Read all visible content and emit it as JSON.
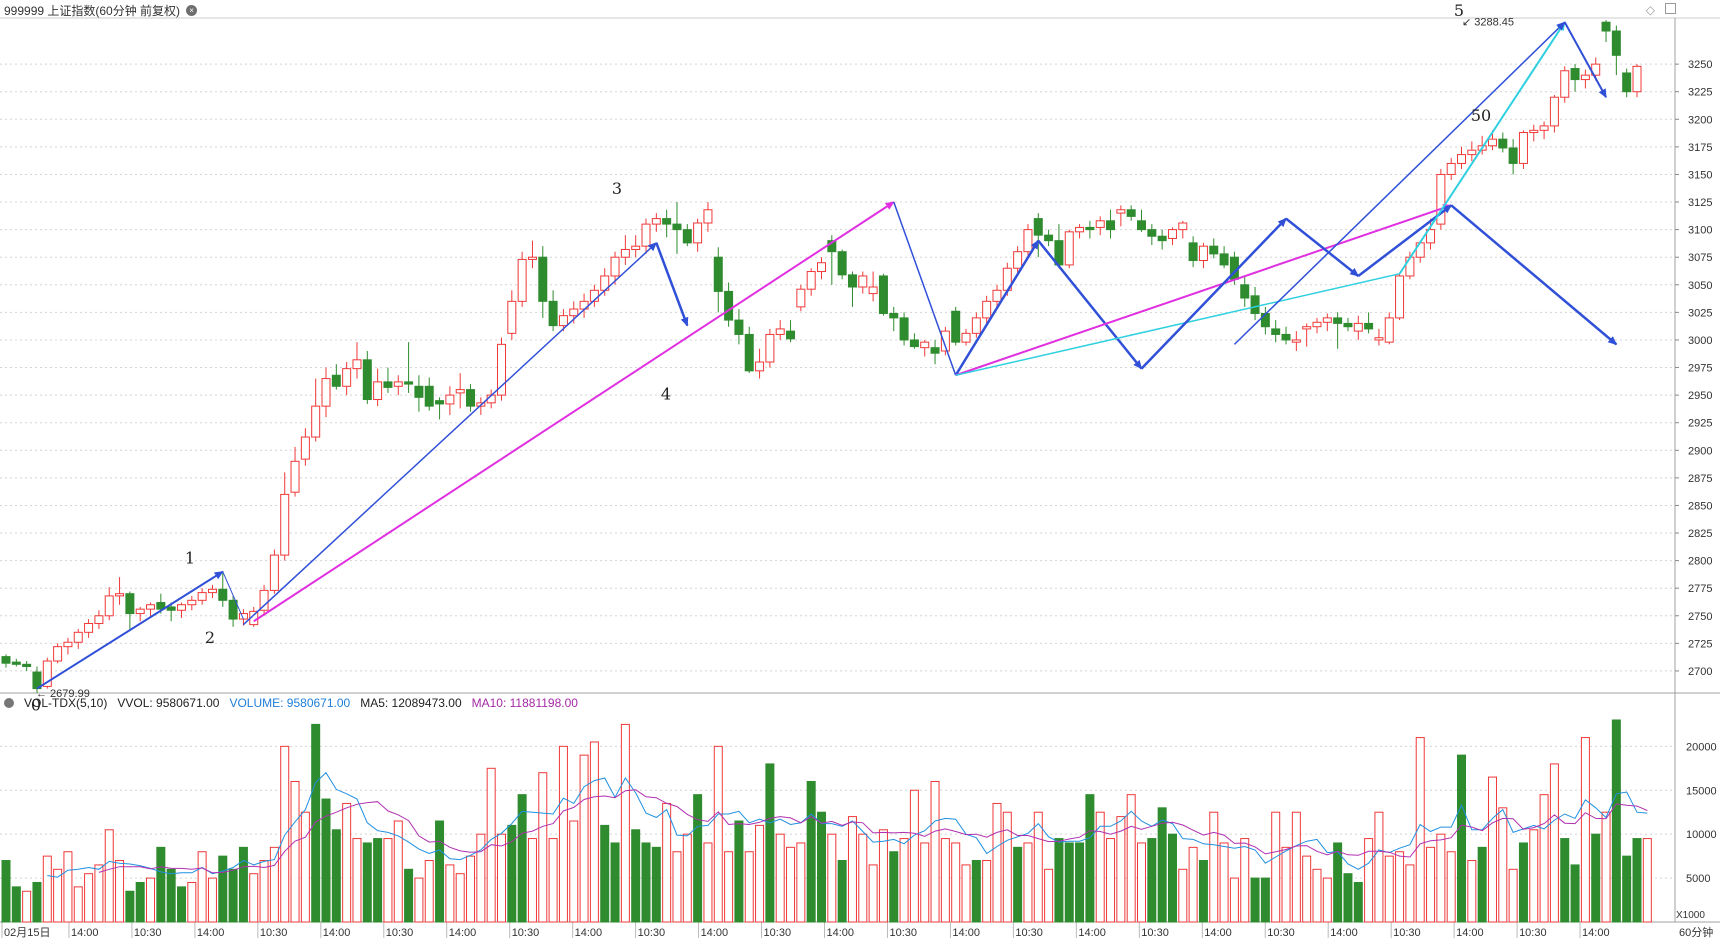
{
  "header": {
    "title": "999999 上证指数(60分钟 前复权)",
    "diamond_icon": "◇",
    "max_label": "3288.45",
    "min_label": "2679.99"
  },
  "volume_header": {
    "indicator": "VOL-TDX(5,10)",
    "vvol": "VVOL: 9580671.00",
    "volume": "VOLUME: 9580671.00",
    "ma5": "MA5: 12089473.00",
    "ma10": "MA10: 11881198.00",
    "unit": "X1000"
  },
  "period_label": "60分钟",
  "colors": {
    "up": "#f03838",
    "down": "#2e8b2e",
    "wave_blue": "#3050d8",
    "wave_magenta": "#e030e0",
    "wave_cyan": "#30d0e0",
    "ma5": "#2090e0",
    "ma10": "#b030b0",
    "grid": "#d4d4d4"
  },
  "chart_data": {
    "type": "candlestick",
    "price_axis": {
      "min": 2680,
      "max": 3290,
      "ticks": [
        2700,
        2725,
        2750,
        2775,
        2800,
        2825,
        2850,
        2875,
        2900,
        2925,
        2950,
        2975,
        3000,
        3025,
        3050,
        3075,
        3100,
        3125,
        3150,
        3175,
        3200,
        3225,
        3250
      ]
    },
    "volume_axis": {
      "min": 0,
      "max": 23000,
      "ticks": [
        5000,
        10000,
        15000,
        20000
      ],
      "unit": "X1000"
    },
    "x_labels": [
      "02月15日",
      "14:00",
      "10:30",
      "14:00",
      "10:30",
      "14:00",
      "10:30",
      "14:00",
      "10:30",
      "14:00",
      "10:30",
      "14:00",
      "10:30",
      "14:00",
      "10:30",
      "14:00",
      "10:30",
      "14:00",
      "10:30",
      "14:00",
      "10:30",
      "14:00",
      "10:30",
      "14:00",
      "10:30",
      "14:00"
    ],
    "candles": [
      [
        2713,
        2715,
        2703,
        2707
      ],
      [
        2708,
        2711,
        2704,
        2706
      ],
      [
        2706,
        2709,
        2700,
        2704
      ],
      [
        2699,
        2704,
        2680,
        2684
      ],
      [
        2686,
        2712,
        2684,
        2709
      ],
      [
        2709,
        2725,
        2707,
        2722
      ],
      [
        2722,
        2730,
        2715,
        2726
      ],
      [
        2726,
        2738,
        2720,
        2735
      ],
      [
        2735,
        2747,
        2730,
        2743
      ],
      [
        2743,
        2755,
        2738,
        2750
      ],
      [
        2750,
        2776,
        2746,
        2768
      ],
      [
        2768,
        2785,
        2760,
        2770
      ],
      [
        2770,
        2772,
        2738,
        2752
      ],
      [
        2752,
        2758,
        2745,
        2756
      ],
      [
        2756,
        2762,
        2748,
        2760
      ],
      [
        2762,
        2770,
        2752,
        2756
      ],
      [
        2758,
        2762,
        2745,
        2755
      ],
      [
        2755,
        2762,
        2748,
        2760
      ],
      [
        2760,
        2768,
        2755,
        2764
      ],
      [
        2764,
        2775,
        2760,
        2771
      ],
      [
        2771,
        2778,
        2766,
        2774
      ],
      [
        2774,
        2790,
        2758,
        2764
      ],
      [
        2764,
        2768,
        2740,
        2747
      ],
      [
        2747,
        2756,
        2741,
        2752
      ],
      [
        2742,
        2758,
        2740,
        2754
      ],
      [
        2755,
        2778,
        2750,
        2773
      ],
      [
        2773,
        2810,
        2770,
        2805
      ],
      [
        2805,
        2880,
        2800,
        2860
      ],
      [
        2862,
        2903,
        2858,
        2890
      ],
      [
        2892,
        2920,
        2886,
        2912
      ],
      [
        2912,
        2965,
        2908,
        2940
      ],
      [
        2940,
        2975,
        2930,
        2965
      ],
      [
        2968,
        2978,
        2955,
        2958
      ],
      [
        2958,
        2980,
        2950,
        2974
      ],
      [
        2974,
        2998,
        2965,
        2982
      ],
      [
        2982,
        2990,
        2942,
        2946
      ],
      [
        2946,
        2974,
        2940,
        2962
      ],
      [
        2962,
        2975,
        2952,
        2957
      ],
      [
        2958,
        2968,
        2950,
        2962
      ],
      [
        2962,
        2998,
        2952,
        2960
      ],
      [
        2958,
        2968,
        2935,
        2948
      ],
      [
        2958,
        2966,
        2936,
        2940
      ],
      [
        2945,
        2948,
        2928,
        2942
      ],
      [
        2942,
        2958,
        2932,
        2950
      ],
      [
        2952,
        2970,
        2938,
        2955
      ],
      [
        2955,
        2960,
        2935,
        2940
      ],
      [
        2940,
        2948,
        2932,
        2943
      ],
      [
        2943,
        2955,
        2938,
        2950
      ],
      [
        2950,
        3002,
        2945,
        2996
      ],
      [
        3006,
        3045,
        3000,
        3035
      ],
      [
        3035,
        3080,
        3030,
        3073
      ],
      [
        3073,
        3090,
        3065,
        3075
      ],
      [
        3075,
        3085,
        3020,
        3035
      ],
      [
        3035,
        3045,
        3008,
        3013
      ],
      [
        3013,
        3028,
        3008,
        3022
      ],
      [
        3022,
        3035,
        3015,
        3028
      ],
      [
        3028,
        3042,
        3020,
        3035
      ],
      [
        3035,
        3050,
        3030,
        3045
      ],
      [
        3045,
        3065,
        3040,
        3058
      ],
      [
        3058,
        3080,
        3050,
        3075
      ],
      [
        3075,
        3095,
        3068,
        3082
      ],
      [
        3082,
        3095,
        3075,
        3085
      ],
      [
        3085,
        3110,
        3078,
        3105
      ],
      [
        3105,
        3115,
        3098,
        3110
      ],
      [
        3110,
        3118,
        3093,
        3105
      ],
      [
        3105,
        3125,
        3078,
        3100
      ],
      [
        3100,
        3105,
        3085,
        3088
      ],
      [
        3088,
        3110,
        3080,
        3106
      ],
      [
        3106,
        3125,
        3098,
        3118
      ],
      [
        3075,
        3084,
        3025,
        3044
      ],
      [
        3044,
        3052,
        3012,
        3018
      ],
      [
        3018,
        3028,
        2996,
        3005
      ],
      [
        3005,
        3012,
        2970,
        2972
      ],
      [
        2972,
        2992,
        2965,
        2980
      ],
      [
        2980,
        3010,
        2975,
        3005
      ],
      [
        3005,
        3018,
        3000,
        3010
      ],
      [
        3008,
        3018,
        2998,
        3001
      ],
      [
        3030,
        3050,
        3026,
        3046
      ],
      [
        3046,
        3065,
        3040,
        3062
      ],
      [
        3062,
        3075,
        3055,
        3070
      ],
      [
        3090,
        3095,
        3050,
        3080
      ],
      [
        3080,
        3082,
        3055,
        3059
      ],
      [
        3059,
        3062,
        3030,
        3048
      ],
      [
        3048,
        3062,
        3042,
        3058
      ],
      [
        3042,
        3062,
        3035,
        3048
      ],
      [
        3058,
        3060,
        3022,
        3024
      ],
      [
        3024,
        3030,
        3008,
        3020
      ],
      [
        3020,
        3025,
        2995,
        3000
      ],
      [
        3000,
        3006,
        2992,
        2994
      ],
      [
        2993,
        3000,
        2985,
        2998
      ],
      [
        2993,
        3000,
        2978,
        2988
      ],
      [
        2990,
        3012,
        2986,
        3008
      ],
      [
        3026,
        3030,
        2995,
        2998
      ],
      [
        2998,
        3010,
        2995,
        3006
      ],
      [
        3006,
        3025,
        3002,
        3020
      ],
      [
        3020,
        3040,
        3015,
        3035
      ],
      [
        3035,
        3050,
        3030,
        3045
      ],
      [
        3045,
        3070,
        3040,
        3065
      ],
      [
        3065,
        3085,
        3060,
        3080
      ],
      [
        3080,
        3105,
        3075,
        3100
      ],
      [
        3110,
        3115,
        3075,
        3095
      ],
      [
        3095,
        3100,
        3085,
        3090
      ],
      [
        3090,
        3105,
        3065,
        3068
      ],
      [
        3068,
        3100,
        3065,
        3098
      ],
      [
        3098,
        3105,
        3092,
        3102
      ],
      [
        3102,
        3108,
        3092,
        3100
      ],
      [
        3102,
        3112,
        3095,
        3108
      ],
      [
        3108,
        3118,
        3092,
        3100
      ],
      [
        3115,
        3122,
        3103,
        3118
      ],
      [
        3118,
        3122,
        3108,
        3112
      ],
      [
        3108,
        3118,
        3098,
        3100
      ],
      [
        3100,
        3105,
        3086,
        3094
      ],
      [
        3094,
        3100,
        3082,
        3090
      ],
      [
        3092,
        3102,
        3086,
        3100
      ],
      [
        3100,
        3108,
        3092,
        3106
      ],
      [
        3088,
        3094,
        3066,
        3072
      ],
      [
        3072,
        3088,
        3065,
        3085
      ],
      [
        3085,
        3092,
        3074,
        3078
      ],
      [
        3078,
        3085,
        3065,
        3068
      ],
      [
        3075,
        3080,
        3050,
        3055
      ],
      [
        3050,
        3058,
        3030,
        3038
      ],
      [
        3040,
        3048,
        3018,
        3024
      ],
      [
        3024,
        3030,
        3005,
        3012
      ],
      [
        3010,
        3018,
        2998,
        3005
      ],
      [
        3005,
        3012,
        2996,
        3000
      ],
      [
        2998,
        3008,
        2990,
        3000
      ],
      [
        3010,
        3015,
        2994,
        3012
      ],
      [
        3012,
        3020,
        3006,
        3016
      ],
      [
        3016,
        3024,
        3008,
        3020
      ],
      [
        3020,
        3025,
        2992,
        3015
      ],
      [
        3015,
        3020,
        3008,
        3012
      ],
      [
        3008,
        3022,
        3000,
        3015
      ],
      [
        3015,
        3025,
        3006,
        3010
      ],
      [
        3000,
        3010,
        2995,
        3002
      ],
      [
        2998,
        3025,
        2996,
        3020
      ],
      [
        3020,
        3060,
        3018,
        3058
      ],
      [
        3058,
        3080,
        3055,
        3075
      ],
      [
        3075,
        3090,
        3070,
        3088
      ],
      [
        3088,
        3110,
        3082,
        3100
      ],
      [
        3105,
        3155,
        3100,
        3150
      ],
      [
        3150,
        3165,
        3145,
        3160
      ],
      [
        3160,
        3175,
        3155,
        3168
      ],
      [
        3168,
        3180,
        3162,
        3172
      ],
      [
        3172,
        3185,
        3168,
        3176
      ],
      [
        3176,
        3190,
        3172,
        3182
      ],
      [
        3182,
        3188,
        3170,
        3174
      ],
      [
        3174,
        3182,
        3150,
        3160
      ],
      [
        3160,
        3190,
        3155,
        3188
      ],
      [
        3188,
        3195,
        3180,
        3190
      ],
      [
        3190,
        3198,
        3182,
        3194
      ],
      [
        3194,
        3222,
        3188,
        3220
      ],
      [
        3220,
        3248,
        3215,
        3244
      ],
      [
        3246,
        3250,
        3225,
        3236
      ],
      [
        3236,
        3245,
        3228,
        3240
      ],
      [
        3240,
        3256,
        3235,
        3250
      ],
      [
        3288,
        3290,
        3270,
        3280
      ],
      [
        3280,
        3285,
        3240,
        3258
      ],
      [
        3242,
        3246,
        3220,
        3225
      ],
      [
        3225,
        3250,
        3220,
        3248
      ]
    ],
    "volume": [
      [
        7000,
        -1
      ],
      [
        4000,
        -1
      ],
      [
        3500,
        1
      ],
      [
        4500,
        -1
      ],
      [
        7500,
        1
      ],
      [
        6000,
        1
      ],
      [
        8000,
        1
      ],
      [
        4000,
        1
      ],
      [
        5500,
        1
      ],
      [
        6500,
        1
      ],
      [
        10500,
        1
      ],
      [
        7000,
        1
      ],
      [
        3500,
        -1
      ],
      [
        4500,
        -1
      ],
      [
        5000,
        1
      ],
      [
        8500,
        -1
      ],
      [
        6000,
        -1
      ],
      [
        4000,
        -1
      ],
      [
        4500,
        1
      ],
      [
        8000,
        1
      ],
      [
        5000,
        1
      ],
      [
        7500,
        -1
      ],
      [
        6000,
        -1
      ],
      [
        8500,
        -1
      ],
      [
        5500,
        1
      ],
      [
        7000,
        1
      ],
      [
        8500,
        1
      ],
      [
        20000,
        1
      ],
      [
        16000,
        1
      ],
      [
        12500,
        1
      ],
      [
        22500,
        -1
      ],
      [
        14000,
        -1
      ],
      [
        10500,
        -1
      ],
      [
        13500,
        1
      ],
      [
        9500,
        1
      ],
      [
        9000,
        -1
      ],
      [
        9500,
        -1
      ],
      [
        9500,
        1
      ],
      [
        11500,
        1
      ],
      [
        6000,
        -1
      ],
      [
        5000,
        1
      ],
      [
        7000,
        1
      ],
      [
        11500,
        -1
      ],
      [
        6500,
        1
      ],
      [
        5500,
        1
      ],
      [
        7500,
        1
      ],
      [
        10000,
        1
      ],
      [
        17500,
        1
      ],
      [
        10000,
        1
      ],
      [
        11000,
        -1
      ],
      [
        14500,
        -1
      ],
      [
        9500,
        1
      ],
      [
        17000,
        1
      ],
      [
        9500,
        1
      ],
      [
        20000,
        1
      ],
      [
        11500,
        1
      ],
      [
        19000,
        1
      ],
      [
        20500,
        1
      ],
      [
        11000,
        -1
      ],
      [
        9000,
        -1
      ],
      [
        22500,
        1
      ],
      [
        10500,
        -1
      ],
      [
        9000,
        -1
      ],
      [
        8500,
        -1
      ],
      [
        13500,
        1
      ],
      [
        8000,
        1
      ],
      [
        10000,
        1
      ],
      [
        14500,
        -1
      ],
      [
        9000,
        1
      ],
      [
        20000,
        1
      ],
      [
        8000,
        1
      ],
      [
        11500,
        -1
      ],
      [
        8000,
        1
      ],
      [
        11000,
        1
      ],
      [
        18000,
        -1
      ],
      [
        10000,
        1
      ],
      [
        8500,
        1
      ],
      [
        9000,
        1
      ],
      [
        16000,
        -1
      ],
      [
        12500,
        -1
      ],
      [
        10000,
        1
      ],
      [
        7000,
        -1
      ],
      [
        12000,
        1
      ],
      [
        10000,
        1
      ],
      [
        6500,
        1
      ],
      [
        10500,
        1
      ],
      [
        8000,
        -1
      ],
      [
        9500,
        1
      ],
      [
        15000,
        1
      ],
      [
        9000,
        1
      ],
      [
        16000,
        1
      ],
      [
        9500,
        1
      ],
      [
        9000,
        1
      ],
      [
        6500,
        1
      ],
      [
        7000,
        -1
      ],
      [
        7000,
        1
      ],
      [
        13500,
        1
      ],
      [
        12500,
        1
      ],
      [
        8500,
        -1
      ],
      [
        9000,
        1
      ],
      [
        12500,
        1
      ],
      [
        6000,
        1
      ],
      [
        9500,
        -1
      ],
      [
        9000,
        -1
      ],
      [
        9000,
        -1
      ],
      [
        14500,
        -1
      ],
      [
        12500,
        1
      ],
      [
        9500,
        1
      ],
      [
        12000,
        1
      ],
      [
        14500,
        1
      ],
      [
        9000,
        1
      ],
      [
        9500,
        -1
      ],
      [
        13000,
        -1
      ],
      [
        10000,
        -1
      ],
      [
        6000,
        1
      ],
      [
        8500,
        1
      ],
      [
        7000,
        -1
      ],
      [
        12500,
        1
      ],
      [
        9000,
        1
      ],
      [
        5000,
        1
      ],
      [
        9500,
        1
      ],
      [
        5000,
        -1
      ],
      [
        5000,
        -1
      ],
      [
        12500,
        1
      ],
      [
        8500,
        1
      ],
      [
        12500,
        1
      ],
      [
        7500,
        1
      ],
      [
        6000,
        1
      ],
      [
        5000,
        1
      ],
      [
        9000,
        -1
      ],
      [
        5500,
        -1
      ],
      [
        4500,
        -1
      ],
      [
        9500,
        1
      ],
      [
        12500,
        1
      ],
      [
        7500,
        1
      ],
      [
        8000,
        1
      ],
      [
        6500,
        1
      ],
      [
        21000,
        1
      ],
      [
        8500,
        1
      ],
      [
        10000,
        1
      ],
      [
        8000,
        1
      ],
      [
        19000,
        -1
      ],
      [
        7000,
        1
      ],
      [
        8500,
        -1
      ],
      [
        16500,
        1
      ],
      [
        13000,
        1
      ],
      [
        6000,
        1
      ],
      [
        9000,
        -1
      ],
      [
        10500,
        1
      ],
      [
        14500,
        1
      ],
      [
        18000,
        1
      ],
      [
        9500,
        -1
      ],
      [
        6500,
        -1
      ],
      [
        21000,
        1
      ],
      [
        10000,
        -1
      ],
      [
        12500,
        1
      ],
      [
        23000,
        -1
      ],
      [
        7500,
        -1
      ],
      [
        9500,
        -1
      ],
      [
        9500,
        1
      ]
    ]
  },
  "wave_labels": [
    "0",
    "1",
    "2",
    "3",
    "4",
    "5",
    "50"
  ]
}
